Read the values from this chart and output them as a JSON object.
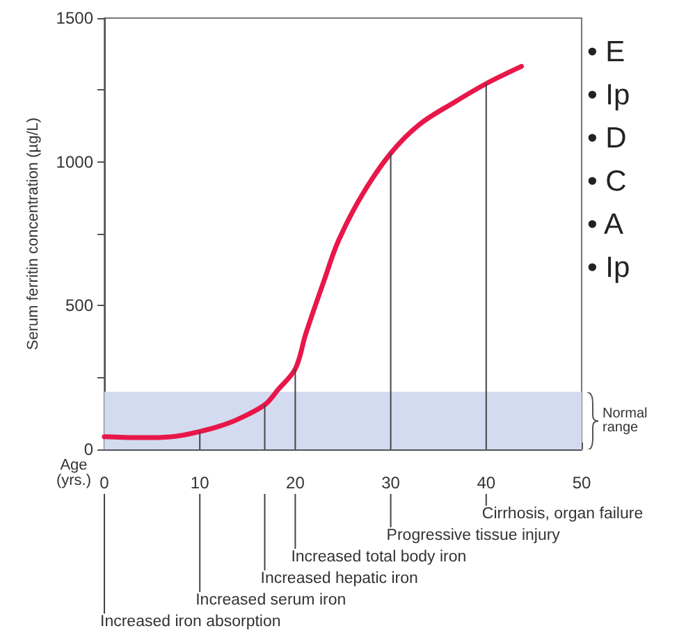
{
  "chart_data": {
    "type": "line",
    "ylabel": "Serum ferritin concentration (µg/L)",
    "xlabel": "Age (yrs.)",
    "x": [
      0,
      2,
      4,
      6,
      8,
      10,
      12,
      14,
      16.8,
      18.2,
      20,
      21.1,
      23.1,
      24.5,
      27,
      30,
      33,
      36.7,
      40,
      43.7
    ],
    "series": [
      {
        "color": "#e8174a",
        "values": [
          44,
          42,
          41,
          42,
          48,
          62,
          80,
          105,
          155,
          208,
          280,
          402,
          595,
          724,
          885,
          1030,
          1130,
          1208,
          1272,
          1332
        ]
      },
      {
        "type": "bar",
        "color": "#444444",
        "x": [
          10,
          16.8,
          20,
          30,
          40
        ],
        "values": [
          62,
          155,
          280,
          1030,
          1272
        ]
      }
    ],
    "xlim": [
      0,
      50
    ],
    "xticks": [
      0,
      10,
      20,
      30,
      40,
      50
    ],
    "ylim": [
      0,
      1500
    ],
    "yticks": [
      0,
      {
        "value": 250,
        "label": null
      },
      500,
      {
        "value": 750,
        "label": null
      },
      1000,
      {
        "value": 1250,
        "label": null
      },
      1500
    ],
    "bands": [
      {
        "axis": "y",
        "from": 0,
        "to": 200,
        "label": "Normal range",
        "color": "#d3dbf0"
      }
    ],
    "annotations": [
      "Increased iron absorption",
      "Increased serum iron",
      "Increased hepatic iron",
      "Increased total body iron",
      "Progressive tissue injury",
      "Cirrhosis, organ failure",
      "• E",
      "• Ip",
      "• D",
      "• C",
      "• A",
      "• Ip"
    ],
    "grid": false,
    "marker": "none",
    "line_style": "solid"
  }
}
